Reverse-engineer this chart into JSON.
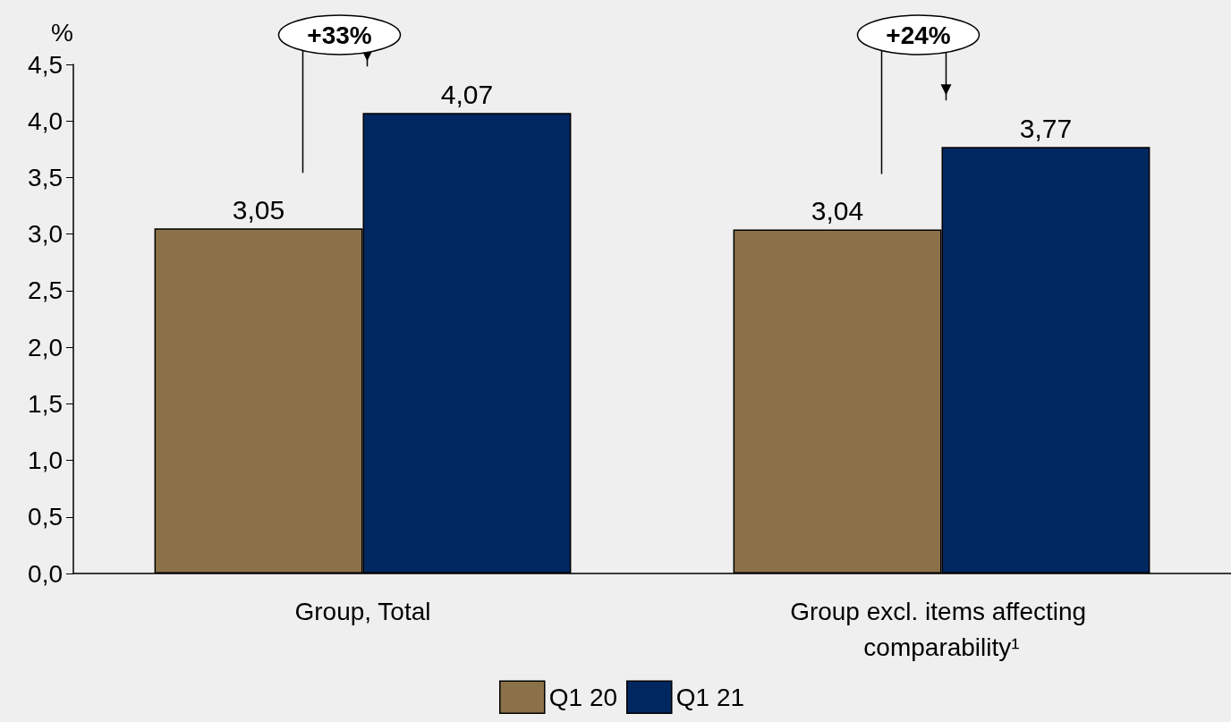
{
  "chart_data": {
    "type": "bar",
    "ylabel": "%",
    "categories": [
      "Group, Total",
      "Group excl. items affecting comparability¹"
    ],
    "series": [
      {
        "name": "Q1 20",
        "color": "#8b7149",
        "values": [
          3.05,
          3.04
        ],
        "value_labels": [
          "3,05",
          "3,04"
        ]
      },
      {
        "name": "Q1 21",
        "color": "#002760",
        "values": [
          4.07,
          3.77
        ],
        "value_labels": [
          "4,07",
          "3,77"
        ]
      }
    ],
    "ylim": [
      0,
      4.5
    ],
    "yticks": [
      {
        "value": 0,
        "label": "0,0"
      },
      {
        "value": 0.5,
        "label": "0,5"
      },
      {
        "value": 1,
        "label": "1,0"
      },
      {
        "value": 1.5,
        "label": "1,5"
      },
      {
        "value": 2,
        "label": "2,0"
      },
      {
        "value": 2.5,
        "label": "2,5"
      },
      {
        "value": 3,
        "label": "3,0"
      },
      {
        "value": 3.5,
        "label": "3,5"
      },
      {
        "value": 4,
        "label": "4,0"
      },
      {
        "value": 4.5,
        "label": "4,5"
      }
    ],
    "annotations": [
      "+33%",
      "+24%"
    ],
    "grid": false,
    "legend": "bottom"
  }
}
